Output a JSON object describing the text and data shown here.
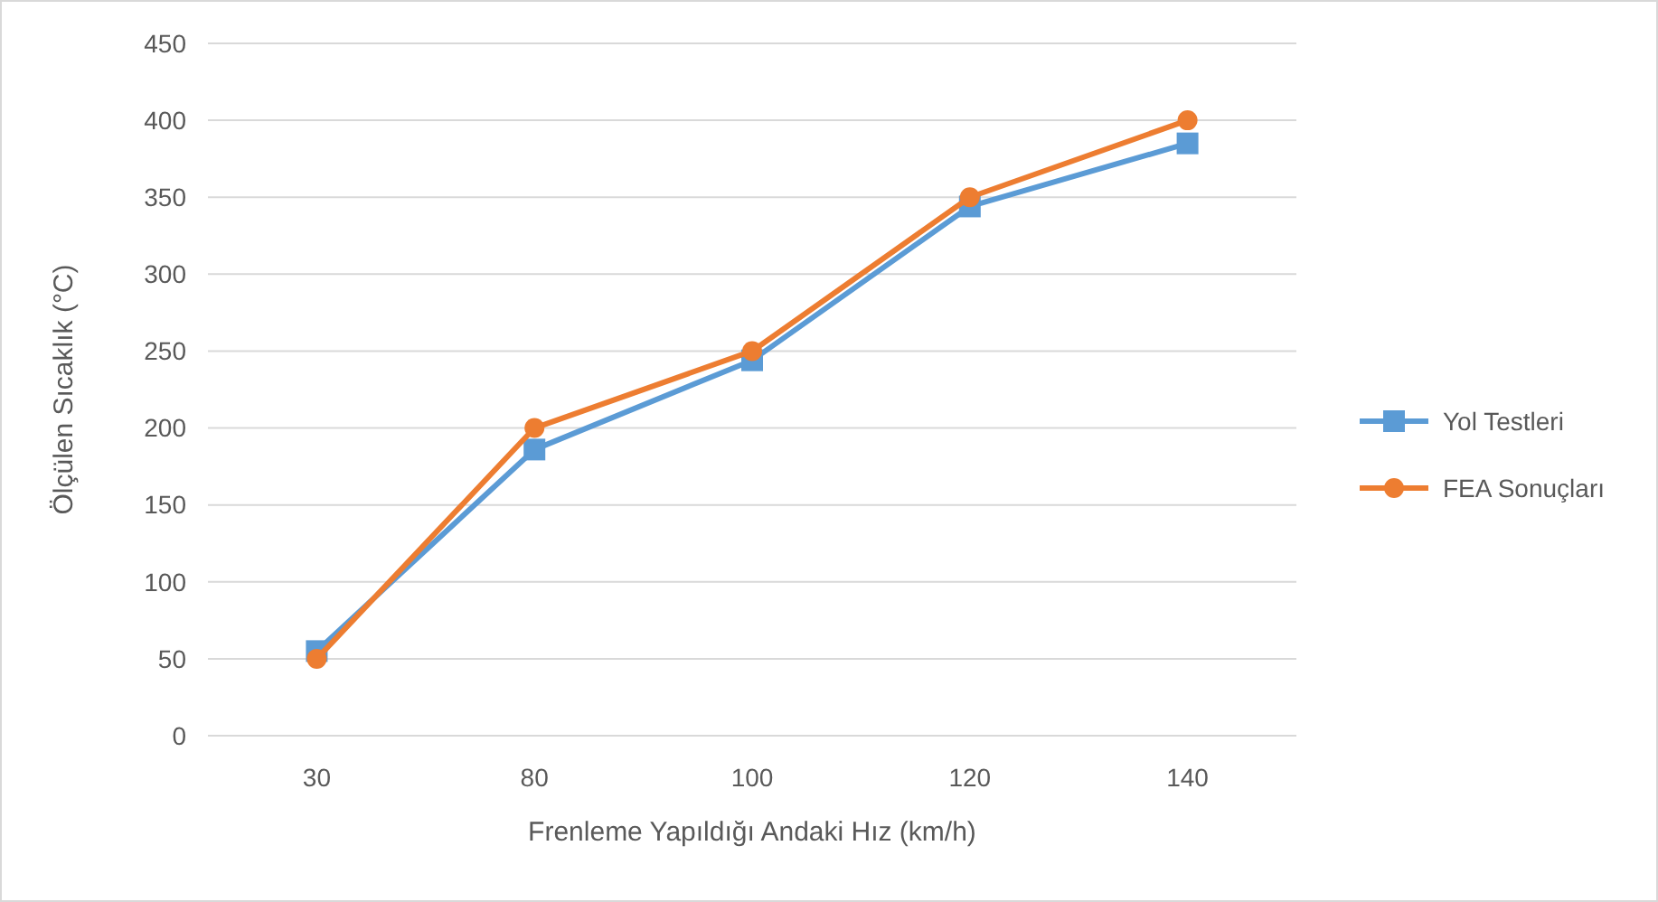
{
  "chart_data": {
    "type": "line",
    "xlabel": "Frenleme Yapıldığı Andaki Hız (km/h)",
    "ylabel": "Ölçülen Sıcaklık (°C)",
    "categories": [
      "30",
      "80",
      "100",
      "120",
      "140"
    ],
    "series": [
      {
        "name": "Yol Testleri",
        "color": "#5b9bd5",
        "marker": "square",
        "values": [
          55,
          186,
          244,
          344,
          385
        ]
      },
      {
        "name": "FEA Sonuçları",
        "color": "#ed7d31",
        "marker": "circle",
        "values": [
          50,
          200,
          250,
          350,
          400
        ]
      }
    ],
    "ylim": [
      0,
      450
    ],
    "yticks": [
      0,
      50,
      100,
      150,
      200,
      250,
      300,
      350,
      400,
      450
    ],
    "grid": "y",
    "legend": "right"
  }
}
